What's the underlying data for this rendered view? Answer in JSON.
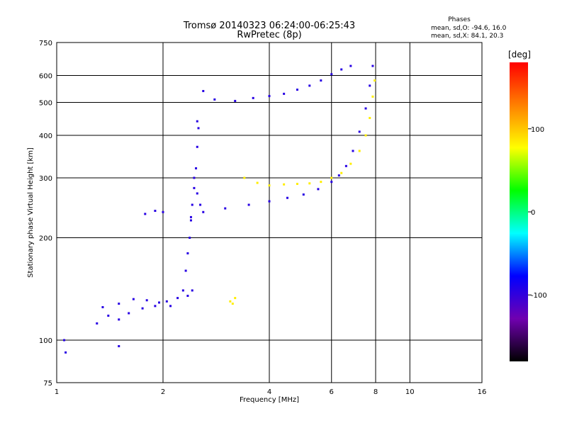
{
  "chart_data": {
    "type": "scatter",
    "title": "Tromsø 20140323 06:24:00-06:25:43",
    "subtitle": "RwPretec (8p)",
    "xlabel": "Frequency [MHz]",
    "ylabel": "Stationary phase Virtual Height [km]",
    "x_scale": "log2",
    "y_scale": "log",
    "xlim": [
      1,
      16
    ],
    "ylim": [
      75,
      750
    ],
    "x_ticks": [
      1,
      2,
      4,
      6,
      8,
      10,
      16
    ],
    "x_tick_labels": [
      "1",
      "2",
      "4",
      "6",
      "8",
      "10",
      "16"
    ],
    "y_ticks": [
      75,
      100,
      200,
      300,
      400,
      500,
      600,
      750
    ],
    "y_tick_labels": [
      "75",
      "100",
      "200",
      "300",
      "400",
      "500",
      "600",
      "750"
    ],
    "grid": true,
    "stats": {
      "header": "Phases",
      "line_o": "mean, sd,O: -94.6, 16.0",
      "line_x": "mean, sd,X:  84.1, 20.3"
    },
    "colorbar": {
      "label": "[deg]",
      "min": -180,
      "max": 180,
      "ticks": [
        100,
        0,
        -100
      ],
      "tick_labels": [
        "100",
        "0",
        "-100"
      ],
      "colormap": [
        "#000000",
        "#7000b0",
        "#0000ff",
        "#00ffff",
        "#00ff00",
        "#ffff00",
        "#ff8000",
        "#ff0000"
      ]
    },
    "series": [
      {
        "phase_deg": -95,
        "traces": [
          {
            "points": [
              [
                1.3,
                112
              ],
              [
                1.4,
                118
              ],
              [
                1.5,
                115
              ],
              [
                1.6,
                120
              ],
              [
                1.75,
                124
              ],
              [
                1.9,
                126
              ],
              [
                2.05,
                130
              ],
              [
                2.2,
                133
              ],
              [
                2.35,
                135
              ],
              [
                2.42,
                140
              ]
            ]
          },
          {
            "points": [
              [
                1.35,
                125
              ],
              [
                1.5,
                128
              ],
              [
                1.65,
                132
              ],
              [
                1.8,
                131
              ],
              [
                1.95,
                129
              ],
              [
                2.1,
                126
              ]
            ]
          },
          {
            "points": [
              [
                2.28,
                140
              ],
              [
                2.32,
                160
              ],
              [
                2.35,
                180
              ],
              [
                2.38,
                200
              ],
              [
                2.4,
                225
              ],
              [
                2.42,
                250
              ],
              [
                2.45,
                280
              ],
              [
                2.48,
                320
              ],
              [
                2.5,
                370
              ],
              [
                2.52,
                420
              ],
              [
                2.5,
                440
              ]
            ]
          },
          {
            "points": [
              [
                2.4,
                230
              ],
              [
                2.6,
                238
              ],
              [
                3.0,
                244
              ],
              [
                3.5,
                250
              ],
              [
                4.0,
                256
              ],
              [
                4.5,
                262
              ],
              [
                5.0,
                268
              ],
              [
                5.5,
                278
              ],
              [
                6.0,
                292
              ],
              [
                6.3,
                305
              ],
              [
                6.6,
                325
              ],
              [
                6.9,
                360
              ],
              [
                7.2,
                410
              ],
              [
                7.5,
                480
              ],
              [
                7.7,
                560
              ],
              [
                7.85,
                640
              ]
            ]
          },
          {
            "points": [
              [
                2.45,
                300
              ],
              [
                2.5,
                270
              ],
              [
                2.55,
                250
              ]
            ]
          },
          {
            "points": [
              [
                2.6,
                540
              ],
              [
                2.8,
                510
              ],
              [
                3.2,
                505
              ],
              [
                3.6,
                515
              ],
              [
                4.0,
                522
              ],
              [
                4.4,
                530
              ],
              [
                4.8,
                545
              ],
              [
                5.2,
                560
              ],
              [
                5.6,
                580
              ],
              [
                6.0,
                605
              ],
              [
                6.4,
                625
              ],
              [
                6.8,
                640
              ]
            ]
          },
          {
            "points": [
              [
                1.78,
                235
              ],
              [
                1.9,
                240
              ],
              [
                2.0,
                238
              ]
            ]
          },
          {
            "points": [
              [
                1.05,
                100
              ],
              [
                1.06,
                92
              ],
              [
                1.5,
                96
              ]
            ]
          }
        ]
      },
      {
        "phase_deg": 84,
        "traces": [
          {
            "points": [
              [
                3.4,
                300
              ],
              [
                3.7,
                290
              ],
              [
                4.0,
                285
              ],
              [
                4.4,
                287
              ],
              [
                4.8,
                288
              ],
              [
                5.2,
                289
              ],
              [
                5.6,
                292
              ],
              [
                6.0,
                300
              ],
              [
                6.4,
                310
              ],
              [
                6.8,
                330
              ],
              [
                7.2,
                360
              ],
              [
                7.5,
                400
              ],
              [
                7.7,
                450
              ],
              [
                7.85,
                520
              ],
              [
                7.95,
                580
              ]
            ]
          },
          {
            "points": [
              [
                3.1,
                130
              ],
              [
                3.15,
                128
              ],
              [
                3.2,
                133
              ]
            ]
          }
        ]
      }
    ]
  }
}
